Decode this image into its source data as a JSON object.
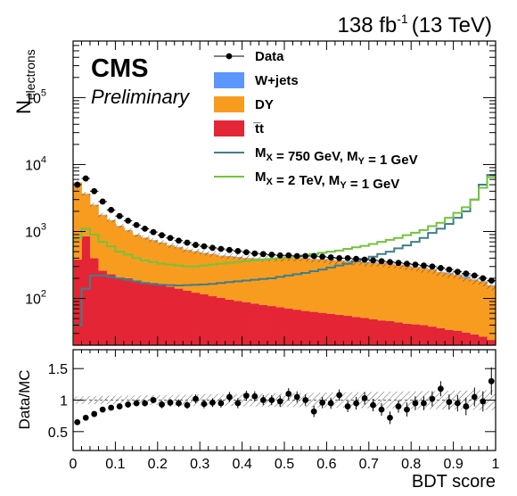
{
  "header": {
    "lumi_value": "138 fb",
    "lumi_exponent": "-1",
    "energy": "(13 TeV)"
  },
  "labels": {
    "experiment": "CMS",
    "status": "Preliminary"
  },
  "colors": {
    "wjets": "#5c96ff",
    "dy": "#f89c20",
    "ttbar": "#e42536",
    "signal_750": "#3f7f8c",
    "signal_2tev": "#72c43a",
    "data": "#000000"
  },
  "chart_data": [
    {
      "type": "bar",
      "stacked": true,
      "log_y": true,
      "xlim": [
        0,
        1
      ],
      "ylim": [
        20,
        700000
      ],
      "xlabel": "BDT score",
      "ylabel": "N",
      "ylabel_subscript": "electrons",
      "y_ticks": [
        {
          "value": 100,
          "mantissa": "10",
          "exponent": "2"
        },
        {
          "value": 1000,
          "mantissa": "10",
          "exponent": "3"
        },
        {
          "value": 10000,
          "mantissa": "10",
          "exponent": "4"
        },
        {
          "value": 100000,
          "mantissa": "10",
          "exponent": "5"
        }
      ],
      "bin_edges": [
        0.0,
        0.02,
        0.04,
        0.06,
        0.08,
        0.1,
        0.12,
        0.14,
        0.16,
        0.18,
        0.2,
        0.22,
        0.24,
        0.26,
        0.28,
        0.3,
        0.32,
        0.34,
        0.36,
        0.38,
        0.4,
        0.42,
        0.44,
        0.46,
        0.48,
        0.5,
        0.52,
        0.54,
        0.56,
        0.58,
        0.6,
        0.62,
        0.64,
        0.66,
        0.68,
        0.7,
        0.72,
        0.74,
        0.76,
        0.78,
        0.8,
        0.82,
        0.84,
        0.86,
        0.88,
        0.9,
        0.92,
        0.94,
        0.96,
        0.98,
        1.0
      ],
      "series": [
        {
          "name": "t̅t",
          "key": "ttbar",
          "values": [
            380,
            850,
            400,
            260,
            230,
            200,
            200,
            185,
            175,
            165,
            160,
            150,
            140,
            130,
            122,
            115,
            108,
            102,
            96,
            92,
            88,
            84,
            80,
            77,
            74,
            71,
            68,
            65,
            63,
            61,
            59,
            57,
            55,
            53,
            51,
            49,
            47,
            46,
            44,
            42,
            41,
            40,
            38,
            36,
            34,
            33,
            31,
            29,
            27,
            24
          ]
        },
        {
          "name": "DY",
          "key": "dy",
          "values": [
            5000,
            2800,
            2100,
            1500,
            1240,
            1010,
            840,
            700,
            630,
            570,
            520,
            470,
            440,
            400,
            380,
            360,
            350,
            330,
            330,
            320,
            310,
            310,
            310,
            320,
            320,
            330,
            330,
            330,
            320,
            320,
            310,
            310,
            300,
            300,
            290,
            290,
            290,
            280,
            270,
            260,
            250,
            240,
            230,
            210,
            200,
            190,
            170,
            160,
            150,
            130
          ]
        },
        {
          "name": "W+jets",
          "key": "wjets",
          "values": [
            20,
            30,
            20,
            15,
            10,
            10,
            10,
            8,
            6,
            8,
            6,
            5,
            6,
            5,
            6,
            6,
            5,
            5,
            5,
            6,
            4,
            4,
            5,
            4,
            4,
            6,
            4,
            4,
            6,
            4,
            4,
            4,
            3,
            4,
            5,
            6,
            4,
            4,
            4,
            5,
            4,
            3,
            6,
            3,
            5,
            4,
            10,
            3,
            3,
            3
          ]
        }
      ],
      "data_points": [
        5000,
        6200,
        4000,
        2800,
        2100,
        1700,
        1450,
        1250,
        1100,
        980,
        880,
        800,
        730,
        680,
        630,
        600,
        570,
        550,
        530,
        510,
        490,
        470,
        460,
        450,
        440,
        440,
        430,
        430,
        430,
        420,
        410,
        400,
        400,
        390,
        380,
        370,
        360,
        350,
        340,
        330,
        320,
        310,
        300,
        285,
        270,
        250,
        235,
        220,
        200,
        185
      ],
      "signals": [
        {
          "name": "M_X = 750 GeV, M_Y = 1 GeV",
          "key": "signal_750",
          "values": [
            40,
            140,
            220,
            220,
            210,
            200,
            190,
            180,
            170,
            165,
            160,
            158,
            156,
            158,
            160,
            162,
            165,
            170,
            175,
            180,
            185,
            190,
            195,
            200,
            210,
            220,
            230,
            240,
            255,
            270,
            290,
            310,
            330,
            360,
            390,
            420,
            460,
            500,
            560,
            620,
            700,
            800,
            950,
            1100,
            1300,
            1600,
            2000,
            3000,
            5000,
            7000
          ]
        },
        {
          "name": "M_X = 2 TeV, M_Y = 1 GeV",
          "key": "signal_2tev",
          "values": [
            800,
            1100,
            900,
            700,
            600,
            500,
            450,
            400,
            370,
            350,
            330,
            320,
            310,
            300,
            300,
            310,
            320,
            330,
            340,
            350,
            360,
            370,
            380,
            390,
            400,
            410,
            420,
            440,
            460,
            480,
            500,
            520,
            550,
            580,
            610,
            650,
            700,
            750,
            800,
            880,
            960,
            1050,
            1200,
            1350,
            1600,
            1900,
            2300,
            3000,
            4500,
            6500
          ]
        }
      ],
      "legend": {
        "placement": "top-center",
        "entries": [
          {
            "label": "Data",
            "key": "data",
            "kind": "marker"
          },
          {
            "label": "W+jets",
            "key": "wjets",
            "kind": "fill"
          },
          {
            "label": "DY",
            "key": "dy",
            "kind": "fill"
          },
          {
            "label": "t̅t",
            "key": "ttbar",
            "kind": "fill"
          },
          {
            "kind": "line",
            "key": "signal_750",
            "parts": [
              [
                "M",
                ""
              ],
              [
                "X",
                "sub"
              ],
              [
                " = 750 GeV, M",
                ""
              ],
              [
                "Y",
                "sub"
              ],
              [
                " = 1 GeV",
                ""
              ]
            ]
          },
          {
            "kind": "line",
            "key": "signal_2tev",
            "parts": [
              [
                "M",
                ""
              ],
              [
                "X",
                "sub"
              ],
              [
                " = 2 TeV, M",
                ""
              ],
              [
                "Y",
                "sub"
              ],
              [
                " = 1 GeV",
                ""
              ]
            ]
          }
        ]
      }
    },
    {
      "type": "scatter",
      "xlim": [
        0,
        1
      ],
      "ylim": [
        0.2,
        1.8
      ],
      "xlabel": "BDT score",
      "ylabel": "Data/MC",
      "x_ticks": [
        0,
        0.1,
        0.2,
        0.3,
        0.4,
        0.5,
        0.6,
        0.7,
        0.8,
        0.9,
        1
      ],
      "x_tick_labels": [
        "0",
        "0.1",
        "0.2",
        "0.3",
        "0.4",
        "0.5",
        "0.6",
        "0.7",
        "0.8",
        "0.9",
        "1"
      ],
      "y_ticks": [
        0.5,
        1,
        1.5
      ],
      "y_tick_labels": [
        "0.5",
        "1",
        "1.5"
      ],
      "x": [
        0.01,
        0.03,
        0.05,
        0.07,
        0.09,
        0.11,
        0.13,
        0.15,
        0.17,
        0.19,
        0.21,
        0.23,
        0.25,
        0.27,
        0.29,
        0.31,
        0.33,
        0.35,
        0.37,
        0.39,
        0.41,
        0.43,
        0.45,
        0.47,
        0.49,
        0.51,
        0.53,
        0.55,
        0.57,
        0.59,
        0.61,
        0.63,
        0.65,
        0.67,
        0.69,
        0.71,
        0.73,
        0.75,
        0.77,
        0.79,
        0.81,
        0.83,
        0.85,
        0.87,
        0.89,
        0.91,
        0.93,
        0.95,
        0.97,
        0.99
      ],
      "y": [
        0.65,
        0.72,
        0.78,
        0.85,
        0.88,
        0.9,
        0.93,
        0.95,
        0.95,
        1.0,
        0.93,
        0.96,
        0.95,
        0.92,
        1.02,
        0.94,
        0.96,
        0.95,
        1.05,
        0.95,
        1.07,
        1.06,
        1.0,
        1.0,
        0.98,
        1.1,
        1.05,
        1.0,
        0.82,
        0.96,
        0.95,
        1.08,
        0.9,
        0.95,
        1.03,
        0.92,
        0.85,
        0.72,
        0.9,
        0.85,
        0.95,
        0.95,
        1.02,
        1.18,
        0.97,
        0.95,
        0.9,
        1.05,
        0.98,
        1.3
      ],
      "yerr": [
        0.03,
        0.03,
        0.03,
        0.04,
        0.04,
        0.04,
        0.05,
        0.05,
        0.05,
        0.05,
        0.06,
        0.06,
        0.06,
        0.06,
        0.07,
        0.07,
        0.07,
        0.07,
        0.08,
        0.08,
        0.08,
        0.08,
        0.08,
        0.08,
        0.09,
        0.09,
        0.09,
        0.09,
        0.09,
        0.09,
        0.09,
        0.09,
        0.09,
        0.1,
        0.1,
        0.1,
        0.1,
        0.1,
        0.1,
        0.11,
        0.11,
        0.11,
        0.12,
        0.12,
        0.12,
        0.13,
        0.14,
        0.15,
        0.16,
        0.22
      ],
      "reference_line": 1
    }
  ]
}
